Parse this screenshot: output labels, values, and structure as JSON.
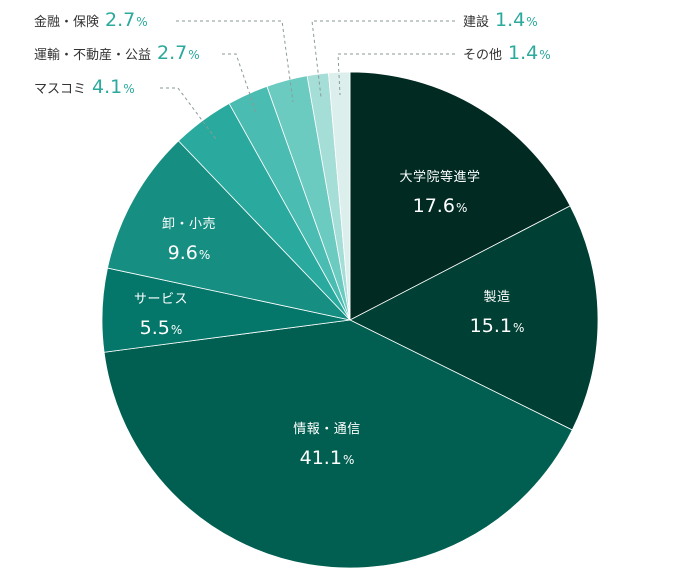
{
  "chart_data": {
    "type": "pie",
    "unit": "%",
    "slices": [
      {
        "label": "大学院等進学",
        "value": 17.6,
        "color": "#002a22"
      },
      {
        "label": "製造",
        "value": 15.1,
        "color": "#003f33"
      },
      {
        "label": "情報・通信",
        "value": 41.1,
        "color": "#005f50"
      },
      {
        "label": "サービス",
        "value": 5.5,
        "color": "#04776a"
      },
      {
        "label": "卸・小売",
        "value": 9.6,
        "color": "#168f82"
      },
      {
        "label": "マスコミ",
        "value": 4.1,
        "color": "#2aaa9e"
      },
      {
        "label": "運輸・不動産・公益",
        "value": 2.7,
        "color": "#4bbcb1"
      },
      {
        "label": "金融・保険",
        "value": 2.7,
        "color": "#6ccbc1"
      },
      {
        "label": "建設",
        "value": 1.4,
        "color": "#a5ddd7"
      },
      {
        "label": "その他",
        "value": 1.4,
        "color": "#dcefec"
      }
    ],
    "value_label_color_outside": "#2aa99c",
    "leader_color": "#8a9a97"
  }
}
